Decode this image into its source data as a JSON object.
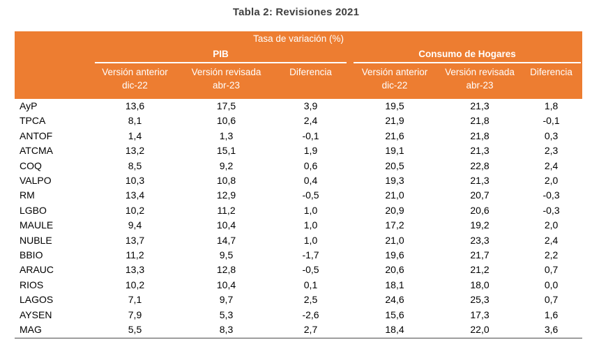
{
  "title": "Tabla 2: Revisiones 2021",
  "table": {
    "top_header": "Tasa de variación (%)",
    "groups": [
      {
        "label": "PIB"
      },
      {
        "label": "Consumo de Hogares"
      }
    ],
    "subcols": [
      {
        "line1": "Versión anterior",
        "line2": "dic-22"
      },
      {
        "line1": "Versión revisada",
        "line2": "abr-23"
      },
      {
        "line1": "Diferencia",
        "line2": ""
      }
    ],
    "rows": [
      {
        "region": "AyP",
        "values": [
          "13,6",
          "17,5",
          "3,9",
          "19,5",
          "21,3",
          "1,8"
        ]
      },
      {
        "region": "TPCA",
        "values": [
          "8,1",
          "10,6",
          "2,4",
          "21,9",
          "21,8",
          "-0,1"
        ]
      },
      {
        "region": "ANTOF",
        "values": [
          "1,4",
          "1,3",
          "-0,1",
          "21,6",
          "21,8",
          "0,3"
        ]
      },
      {
        "region": "ATCMA",
        "values": [
          "13,2",
          "15,1",
          "1,9",
          "19,1",
          "21,3",
          "2,3"
        ]
      },
      {
        "region": "COQ",
        "values": [
          "8,5",
          "9,2",
          "0,6",
          "20,5",
          "22,8",
          "2,4"
        ]
      },
      {
        "region": "VALPO",
        "values": [
          "10,3",
          "10,8",
          "0,4",
          "19,3",
          "21,3",
          "2,0"
        ]
      },
      {
        "region": "RM",
        "values": [
          "13,4",
          "12,9",
          "-0,5",
          "21,0",
          "20,7",
          "-0,3"
        ]
      },
      {
        "region": "LGBO",
        "values": [
          "10,2",
          "11,2",
          "1,0",
          "20,9",
          "20,6",
          "-0,3"
        ]
      },
      {
        "region": "MAULE",
        "values": [
          "9,4",
          "10,4",
          "1,0",
          "17,2",
          "19,2",
          "2,0"
        ]
      },
      {
        "region": "NUBLE",
        "values": [
          "13,7",
          "14,7",
          "1,0",
          "21,0",
          "23,3",
          "2,4"
        ]
      },
      {
        "region": "BBIO",
        "values": [
          "11,2",
          "9,5",
          "-1,7",
          "19,6",
          "21,7",
          "2,2"
        ]
      },
      {
        "region": "ARAUC",
        "values": [
          "13,3",
          "12,8",
          "-0,5",
          "20,6",
          "21,2",
          "0,7"
        ]
      },
      {
        "region": "RIOS",
        "values": [
          "10,2",
          "10,4",
          "0,1",
          "18,1",
          "18,0",
          "0,0"
        ]
      },
      {
        "region": "LAGOS",
        "values": [
          "7,1",
          "9,7",
          "2,5",
          "24,6",
          "25,3",
          "0,7"
        ]
      },
      {
        "region": "AYSEN",
        "values": [
          "7,9",
          "5,3",
          "-2,6",
          "15,6",
          "17,3",
          "1,6"
        ]
      },
      {
        "region": "MAG",
        "values": [
          "5,5",
          "8,3",
          "2,7",
          "18,4",
          "22,0",
          "3,6"
        ]
      }
    ]
  },
  "chart_data": {
    "type": "table",
    "title": "Tabla 2: Revisiones 2021",
    "unit_header": "Tasa de variación (%)",
    "column_groups": [
      "PIB",
      "Consumo de Hogares"
    ],
    "columns": [
      "PIB Versión anterior dic-22",
      "PIB Versión revisada abr-23",
      "PIB Diferencia",
      "Consumo de Hogares Versión anterior dic-22",
      "Consumo de Hogares Versión revisada abr-23",
      "Consumo de Hogares Diferencia"
    ],
    "categories": [
      "AyP",
      "TPCA",
      "ANTOF",
      "ATCMA",
      "COQ",
      "VALPO",
      "RM",
      "LGBO",
      "MAULE",
      "NUBLE",
      "BBIO",
      "ARAUC",
      "RIOS",
      "LAGOS",
      "AYSEN",
      "MAG"
    ],
    "values": [
      [
        13.6,
        17.5,
        3.9,
        19.5,
        21.3,
        1.8
      ],
      [
        8.1,
        10.6,
        2.4,
        21.9,
        21.8,
        -0.1
      ],
      [
        1.4,
        1.3,
        -0.1,
        21.6,
        21.8,
        0.3
      ],
      [
        13.2,
        15.1,
        1.9,
        19.1,
        21.3,
        2.3
      ],
      [
        8.5,
        9.2,
        0.6,
        20.5,
        22.8,
        2.4
      ],
      [
        10.3,
        10.8,
        0.4,
        19.3,
        21.3,
        2.0
      ],
      [
        13.4,
        12.9,
        -0.5,
        21.0,
        20.7,
        -0.3
      ],
      [
        10.2,
        11.2,
        1.0,
        20.9,
        20.6,
        -0.3
      ],
      [
        9.4,
        10.4,
        1.0,
        17.2,
        19.2,
        2.0
      ],
      [
        13.7,
        14.7,
        1.0,
        21.0,
        23.3,
        2.4
      ],
      [
        11.2,
        9.5,
        -1.7,
        19.6,
        21.7,
        2.2
      ],
      [
        13.3,
        12.8,
        -0.5,
        20.6,
        21.2,
        0.7
      ],
      [
        10.2,
        10.4,
        0.1,
        18.1,
        18.0,
        0.0
      ],
      [
        7.1,
        9.7,
        2.5,
        24.6,
        25.3,
        0.7
      ],
      [
        7.9,
        5.3,
        -2.6,
        15.6,
        17.3,
        1.6
      ],
      [
        5.5,
        8.3,
        2.7,
        18.4,
        22.0,
        3.6
      ]
    ],
    "decimal_separator": ","
  },
  "colors": {
    "header_bg": "#ED7D31",
    "header_text": "#FFFFFF",
    "title_text": "#404040",
    "body_text": "#000000",
    "bottom_border": "#4A4A4A"
  }
}
